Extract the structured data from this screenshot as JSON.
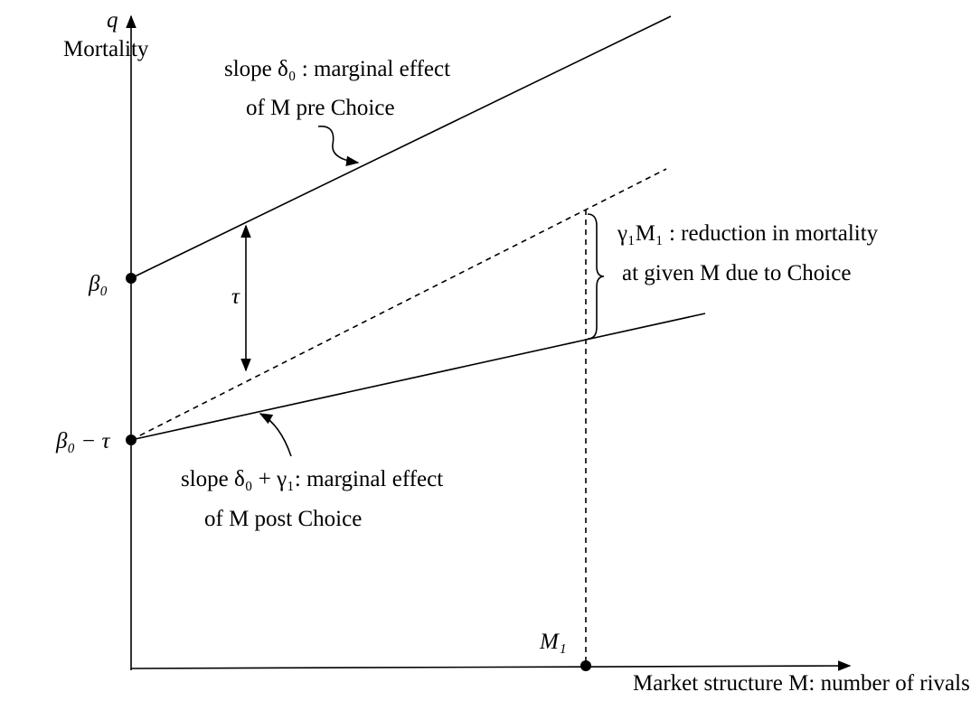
{
  "axes": {
    "y_symbol": "q",
    "y_label": "Mortality",
    "x_label": "Market structure M: number of rivals"
  },
  "points": {
    "beta0": "β₀",
    "beta0_minus_tau": "β₀ − τ",
    "m1": "M₁"
  },
  "gap": "τ",
  "pre_choice": {
    "line1": "slope  δ₀ : marginal effect",
    "line2": "of M pre Choice"
  },
  "post_choice": {
    "line1": "slope  δ₀ + γ₁:  marginal effect",
    "line2": "of M post Choice"
  },
  "reduction": {
    "line1": "γ₁M₁ : reduction in mortality",
    "line2": "at given M due to Choice"
  }
}
